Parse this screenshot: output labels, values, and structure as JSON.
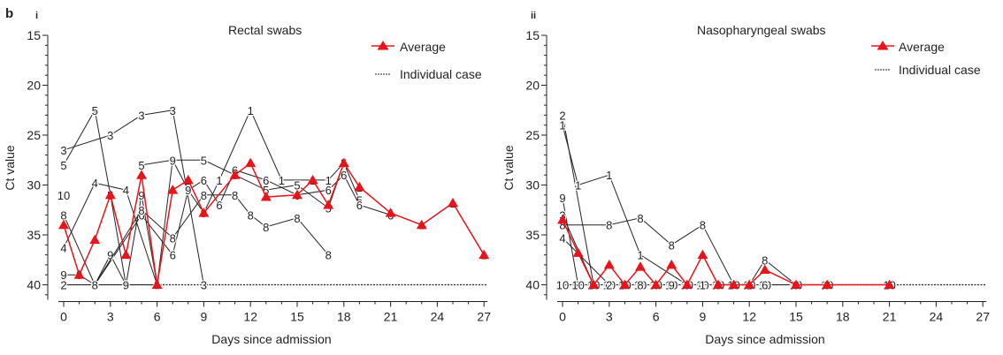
{
  "figure": {
    "panel_label": "b"
  },
  "colors": {
    "average": "#e8141c",
    "individual": "#222222",
    "axis": "#222222"
  },
  "chart_data": [
    {
      "type": "line",
      "panel": "i",
      "title": "Rectal swabs",
      "xlabel": "Days since admission",
      "ylabel": "Ct value",
      "xlim": [
        0,
        27
      ],
      "ylim": [
        15,
        41.5
      ],
      "y_inverted": true,
      "xticks": [
        0,
        3,
        6,
        9,
        12,
        15,
        18,
        21,
        24,
        27
      ],
      "yticks": [
        15,
        20,
        25,
        30,
        35,
        40
      ],
      "limit_line": 40,
      "legend": {
        "position": "top-right",
        "average": "Average",
        "individual": "Individual case"
      },
      "average": {
        "name": "Average",
        "points": [
          [
            0,
            34
          ],
          [
            1,
            39
          ],
          [
            2,
            35.5
          ],
          [
            3,
            31
          ],
          [
            4,
            37
          ],
          [
            5,
            29
          ],
          [
            6,
            40
          ],
          [
            7,
            30.5
          ],
          [
            8,
            29.5
          ],
          [
            9,
            32.8
          ],
          [
            11,
            29
          ],
          [
            12,
            27.8
          ],
          [
            13,
            31.2
          ],
          [
            15,
            31
          ],
          [
            16,
            29.5
          ],
          [
            17,
            32
          ],
          [
            18,
            27.8
          ],
          [
            19,
            30.2
          ],
          [
            21,
            32.8
          ],
          [
            23,
            34
          ],
          [
            25,
            31.8
          ],
          [
            27,
            37
          ]
        ]
      },
      "cases": [
        {
          "label": "1",
          "points": [
            [
              8,
              29.5
            ],
            [
              9,
              32.8
            ],
            [
              10,
              29.5
            ],
            [
              12,
              22.5
            ],
            [
              14,
              29.5
            ],
            [
              16,
              29.5
            ],
            [
              17,
              29.5
            ],
            [
              18,
              27.8
            ],
            [
              19,
              30.2
            ],
            [
              21,
              32.8
            ],
            [
              23,
              34
            ],
            [
              25,
              31.8
            ],
            [
              27,
              37
            ]
          ]
        },
        {
          "label": "2",
          "points": [
            [
              0,
              40
            ],
            [
              6,
              40
            ]
          ]
        },
        {
          "label": "3",
          "points": [
            [
              0,
              26.5
            ],
            [
              3,
              25
            ],
            [
              5,
              23
            ],
            [
              7,
              22.5
            ],
            [
              9,
              40
            ]
          ]
        },
        {
          "label": "5",
          "points": [
            [
              0,
              28
            ],
            [
              2,
              22.5
            ],
            [
              3,
              31
            ],
            [
              4,
              40
            ]
          ]
        },
        {
          "label": "5",
          "points": [
            [
              5,
              28
            ],
            [
              7,
              27.5
            ],
            [
              9,
              27.5
            ],
            [
              11,
              29
            ],
            [
              13,
              30.5
            ],
            [
              15,
              30
            ],
            [
              17,
              32.3
            ],
            [
              18,
              27.8
            ],
            [
              19,
              31.5
            ]
          ]
        },
        {
          "label": "6",
          "points": [
            [
              2,
              40
            ],
            [
              5,
              33
            ],
            [
              7,
              37
            ],
            [
              8,
              30.5
            ],
            [
              9,
              29.5
            ],
            [
              10,
              32
            ],
            [
              11,
              28.5
            ],
            [
              13,
              29.5
            ],
            [
              15,
              31
            ],
            [
              17,
              30.5
            ],
            [
              18,
              29
            ],
            [
              19,
              32
            ],
            [
              21,
              33
            ]
          ]
        },
        {
          "label": "9",
          "points": [
            [
              0,
              39
            ],
            [
              1,
              39
            ],
            [
              2,
              40
            ],
            [
              3,
              37
            ],
            [
              4,
              40
            ],
            [
              5,
              31
            ],
            [
              6,
              40
            ],
            [
              7,
              27.5
            ],
            [
              8,
              30.5
            ],
            [
              9,
              32.8
            ]
          ]
        },
        {
          "label": "8",
          "points": [
            [
              0,
              33
            ],
            [
              2,
              40
            ],
            [
              5,
              32.5
            ],
            [
              7,
              35.3
            ],
            [
              9,
              31
            ],
            [
              11,
              31
            ],
            [
              12,
              33
            ],
            [
              13,
              34.2
            ],
            [
              15,
              33.3
            ],
            [
              17,
              37
            ]
          ]
        },
        {
          "label": "4",
          "points": [
            [
              0,
              36.3
            ],
            [
              2,
              29.8
            ],
            [
              4,
              30.5
            ],
            [
              6,
              40
            ]
          ]
        },
        {
          "label": "10",
          "points": [
            [
              0,
              31
            ]
          ]
        }
      ]
    },
    {
      "type": "line",
      "panel": "ii",
      "title": "Nasopharyngeal swabs",
      "xlabel": "Days since admission",
      "ylabel": "Ct value",
      "xlim": [
        0,
        27
      ],
      "ylim": [
        15,
        41.5
      ],
      "y_inverted": true,
      "xticks": [
        0,
        3,
        6,
        9,
        12,
        15,
        18,
        21,
        24,
        27
      ],
      "yticks": [
        15,
        20,
        25,
        30,
        35,
        40
      ],
      "limit_line": 40,
      "legend": {
        "position": "top-right",
        "average": "Average",
        "individual": "Individual case"
      },
      "average": {
        "name": "Average",
        "points": [
          [
            0,
            33.5
          ],
          [
            1,
            36.8
          ],
          [
            2,
            40
          ],
          [
            3,
            38
          ],
          [
            4,
            40
          ],
          [
            5,
            38.2
          ],
          [
            6,
            40
          ],
          [
            7,
            38
          ],
          [
            8,
            40
          ],
          [
            9,
            37
          ],
          [
            10,
            40
          ],
          [
            11,
            40
          ],
          [
            12,
            40
          ],
          [
            13,
            38.5
          ],
          [
            15,
            40
          ],
          [
            17,
            40
          ],
          [
            21,
            40
          ]
        ]
      },
      "cases": [
        {
          "label": "2",
          "points": [
            [
              0,
              23
            ],
            [
              2,
              40
            ]
          ]
        },
        {
          "label": "1",
          "points": [
            [
              0,
              24
            ],
            [
              1,
              30
            ],
            [
              3,
              29
            ],
            [
              5,
              37
            ],
            [
              8,
              40
            ]
          ]
        },
        {
          "label": "9",
          "points": [
            [
              0,
              31.3
            ],
            [
              1,
              40
            ],
            [
              3,
              40
            ]
          ]
        },
        {
          "label": "8",
          "points": [
            [
              0,
              34
            ],
            [
              3,
              34
            ],
            [
              5,
              33.3
            ],
            [
              7,
              36
            ],
            [
              9,
              34
            ],
            [
              11,
              40
            ]
          ]
        },
        {
          "label": "8",
          "points": [
            [
              12,
              40
            ],
            [
              13,
              37.5
            ],
            [
              15,
              40
            ]
          ]
        },
        {
          "label": "3",
          "points": [
            [
              0,
              33
            ],
            [
              2,
              40
            ]
          ]
        },
        {
          "label": "4",
          "points": [
            [
              0,
              35.3
            ],
            [
              3,
              40
            ]
          ]
        },
        {
          "label": "10",
          "points": [
            [
              0,
              40
            ],
            [
              1,
              40
            ],
            [
              2,
              40
            ],
            [
              3,
              40
            ],
            [
              4,
              40
            ],
            [
              5,
              40
            ],
            [
              6,
              40
            ],
            [
              7,
              40
            ],
            [
              8,
              40
            ],
            [
              9,
              40
            ],
            [
              10,
              40
            ],
            [
              11,
              40
            ],
            [
              12,
              40
            ],
            [
              13,
              40
            ],
            [
              15,
              40
            ],
            [
              17,
              40
            ],
            [
              21,
              40
            ]
          ]
        }
      ],
      "baseline_labels": [
        {
          "x": 3,
          "label": "2"
        },
        {
          "x": 4,
          "label": "4"
        },
        {
          "x": 5,
          "label": "8"
        },
        {
          "x": 6,
          "label": "6"
        },
        {
          "x": 7,
          "label": "9"
        },
        {
          "x": 8,
          "label": "8"
        },
        {
          "x": 9,
          "label": "1"
        },
        {
          "x": 10,
          "label": "3"
        },
        {
          "x": 12,
          "label": "1"
        },
        {
          "x": 13,
          "label": "6"
        },
        {
          "x": 15,
          "label": "8"
        },
        {
          "x": 17,
          "label": "8"
        }
      ]
    }
  ]
}
